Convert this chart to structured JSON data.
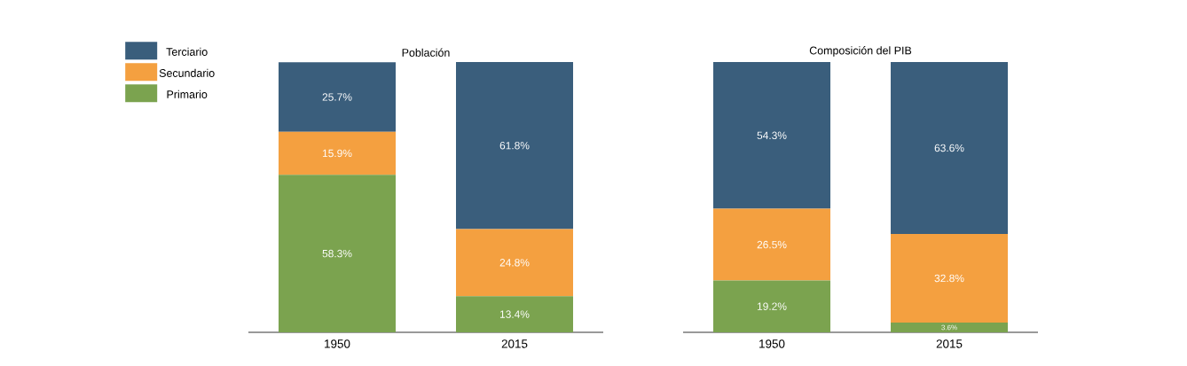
{
  "chart_data": [
    {
      "type": "bar",
      "stacked": true,
      "title": "Población",
      "categories": [
        "1950",
        "2015"
      ],
      "legend": "left",
      "series": [
        {
          "name": "Primario",
          "color": "#7ba34f",
          "values": [
            58.3,
            13.4
          ],
          "value_labels": [
            "58.3%",
            "13.4%"
          ]
        },
        {
          "name": "Secundario",
          "color": "#f4a040",
          "values": [
            15.9,
            24.8
          ],
          "value_labels": [
            "15.9%",
            "24.8%"
          ]
        },
        {
          "name": "Terciario",
          "color": "#3a5e7c",
          "values": [
            25.7,
            61.8
          ],
          "value_labels": [
            "25.7%",
            "61.8%"
          ]
        }
      ]
    },
    {
      "type": "bar",
      "stacked": true,
      "title": "Composición del PIB",
      "categories": [
        "1950",
        "2015"
      ],
      "series": [
        {
          "color": "#7ba34f",
          "values": [
            19.2,
            3.6
          ],
          "value_labels": [
            "19.2%",
            "3.6%"
          ]
        },
        {
          "color": "#f4a040",
          "values": [
            26.5,
            32.8
          ],
          "value_labels": [
            "26.5%",
            "32.8%"
          ]
        },
        {
          "color": "#3a5e7c",
          "values": [
            54.3,
            63.6
          ],
          "value_labels": [
            "54.3%",
            "63.6%"
          ]
        }
      ]
    }
  ]
}
